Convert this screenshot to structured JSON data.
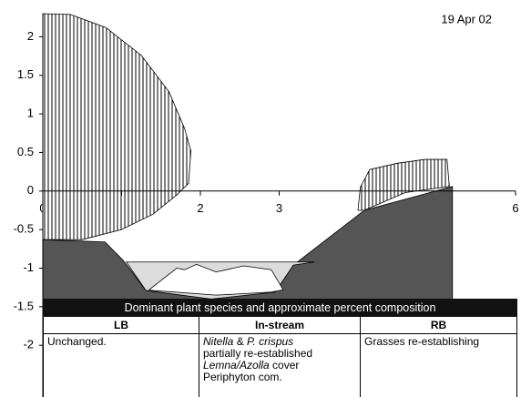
{
  "chart_data": {
    "type": "area",
    "annotation": "19 Apr 02",
    "xlim": [
      0,
      6
    ],
    "ylim": [
      -2.7,
      2.3
    ],
    "xticks": [
      0,
      1,
      2,
      3,
      6
    ],
    "yticks": [
      2,
      1.5,
      1,
      0.5,
      0,
      -0.5,
      -1,
      -1.5,
      -2
    ],
    "areas": [
      {
        "color": "hatch",
        "x": [
          0,
          0.35,
          0.8,
          1.25,
          1.6,
          1.8,
          1.88,
          1.85,
          1.7,
          1.4,
          1.0,
          0.5,
          0
        ],
        "y": [
          2.3,
          2.29,
          2.12,
          1.76,
          1.29,
          0.81,
          0.52,
          0.1,
          -0.05,
          -0.3,
          -0.5,
          -0.63,
          -0.63
        ]
      },
      {
        "color": "hatch",
        "x": [
          4.0,
          4.03,
          4.15,
          4.5,
          4.85,
          5.13,
          5.16,
          4.6,
          4.08
        ],
        "y": [
          -0.25,
          0.05,
          0.28,
          0.36,
          0.41,
          0.41,
          0.06,
          -0.02,
          -0.25
        ]
      },
      {
        "color": "#555555",
        "x": [
          0,
          0.79,
          1.02,
          1.31,
          2.14,
          2.95,
          3.18,
          4.08,
          5.2
        ],
        "y": [
          -0.63,
          -0.66,
          -0.9,
          -1.29,
          -1.4,
          -1.31,
          -0.96,
          -0.25,
          0.06
        ],
        "fill_to_bottom": true
      },
      {
        "color": "#dcdcdc",
        "x": [
          1.06,
          3.45,
          3.18,
          2.95,
          2.14,
          1.31,
          1.06
        ],
        "y": [
          -0.92,
          -0.92,
          -0.96,
          -1.31,
          -1.4,
          -1.29,
          -0.92
        ]
      },
      {
        "color": "#ffffff",
        "x": [
          1.35,
          1.7,
          1.8,
          1.95,
          2.2,
          2.55,
          2.9,
          3.05,
          2.9,
          2.2,
          1.4
        ],
        "y": [
          -1.28,
          -1.0,
          -1.02,
          -0.95,
          -1.05,
          -0.97,
          -1.02,
          -1.28,
          -1.31,
          -1.35,
          -1.29
        ]
      }
    ]
  },
  "table": {
    "title": "Dominant plant species and approximate percent composition",
    "headers": [
      "LB",
      "In-stream",
      "RB"
    ],
    "cells": [
      [
        [
          {
            "text": "Unchanged.",
            "italic": false
          }
        ]
      ],
      [
        [
          {
            "text": "Nitella",
            "italic": true
          },
          {
            "text": " & ",
            "italic": false
          },
          {
            "text": "P. crispus",
            "italic": true
          }
        ],
        [
          {
            "text": "partially re-established",
            "italic": false
          }
        ],
        [
          {
            "text": "Lemna/Azolla",
            "italic": true
          },
          {
            "text": " cover",
            "italic": false
          }
        ],
        [
          {
            "text": "Periphyton com.",
            "italic": false
          }
        ]
      ],
      [
        [
          {
            "text": "Grasses re-establishing",
            "italic": false
          }
        ]
      ]
    ]
  }
}
